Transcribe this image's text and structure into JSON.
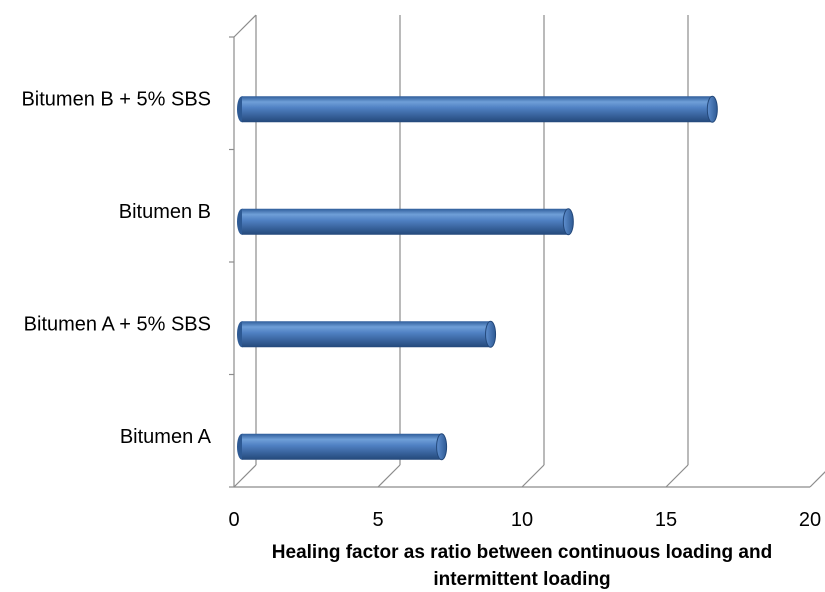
{
  "chart_data": {
    "type": "bar",
    "orientation": "horizontal",
    "style": "3d-cylinder",
    "categories": [
      "Bitumen A",
      "Bitumen A + 5% SBS",
      "Bitumen B",
      "Bitumen B + 5% SBS"
    ],
    "values": [
      7.0,
      8.7,
      11.4,
      16.4
    ],
    "xlabel_lines": [
      "Healing factor as ratio between continuous loading and",
      "intermittent loading"
    ],
    "ylabel": "",
    "xlim": [
      0,
      20
    ],
    "xticks": [
      "0",
      "5",
      "10",
      "15",
      "20"
    ],
    "grid": true,
    "legend": "none",
    "bar_color": "#4a7bbf"
  }
}
